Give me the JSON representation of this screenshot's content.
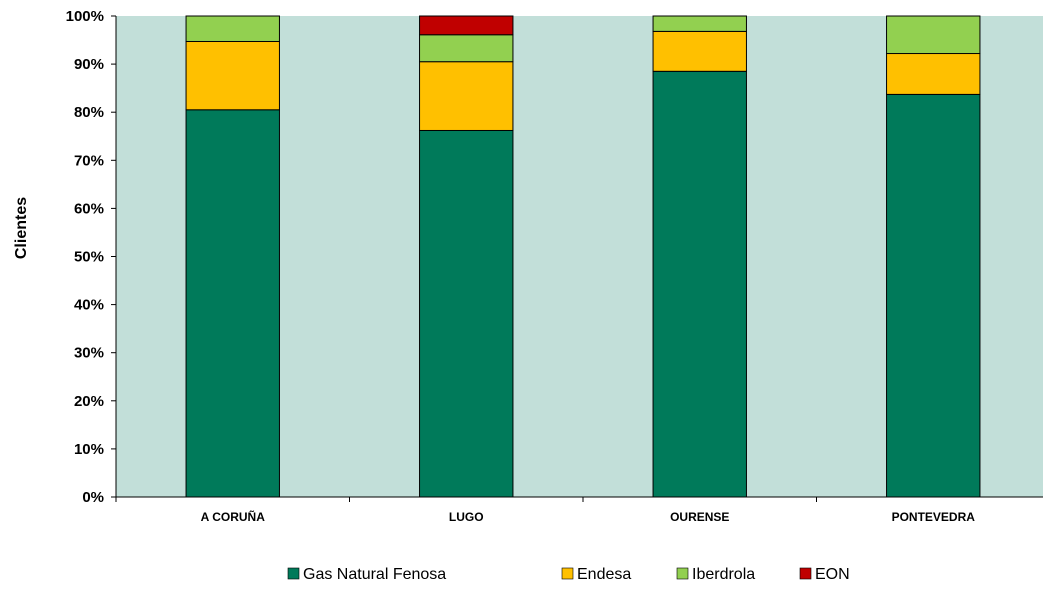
{
  "chart_data": {
    "type": "bar",
    "stacked": true,
    "title": "",
    "xlabel": "",
    "ylabel": "Clientes",
    "ylim": [
      0,
      100
    ],
    "y_ticks": [
      "0%",
      "10%",
      "20%",
      "30%",
      "40%",
      "50%",
      "60%",
      "70%",
      "80%",
      "90%",
      "100%"
    ],
    "y_tick_values": [
      0,
      10,
      20,
      30,
      40,
      50,
      60,
      70,
      80,
      90,
      100
    ],
    "categories": [
      "A CORUÑA",
      "LUGO",
      "OURENSE",
      "PONTEVEDRA"
    ],
    "series": [
      {
        "name": "Gas Natural Fenosa",
        "color": "#007A5A",
        "values": [
          80.5,
          76.2,
          88.5,
          83.7
        ]
      },
      {
        "name": "Endesa",
        "color": "#FFC000",
        "values": [
          14.2,
          14.3,
          8.3,
          8.5
        ]
      },
      {
        "name": "Iberdrola",
        "color": "#92D050",
        "values": [
          5.3,
          5.6,
          3.2,
          7.8
        ]
      },
      {
        "name": "EON",
        "color": "#C00000",
        "values": [
          0.0,
          3.9,
          0.0,
          0.0
        ]
      }
    ],
    "plot_background": "#C2DFD9",
    "grid": false,
    "legend_position": "bottom"
  }
}
